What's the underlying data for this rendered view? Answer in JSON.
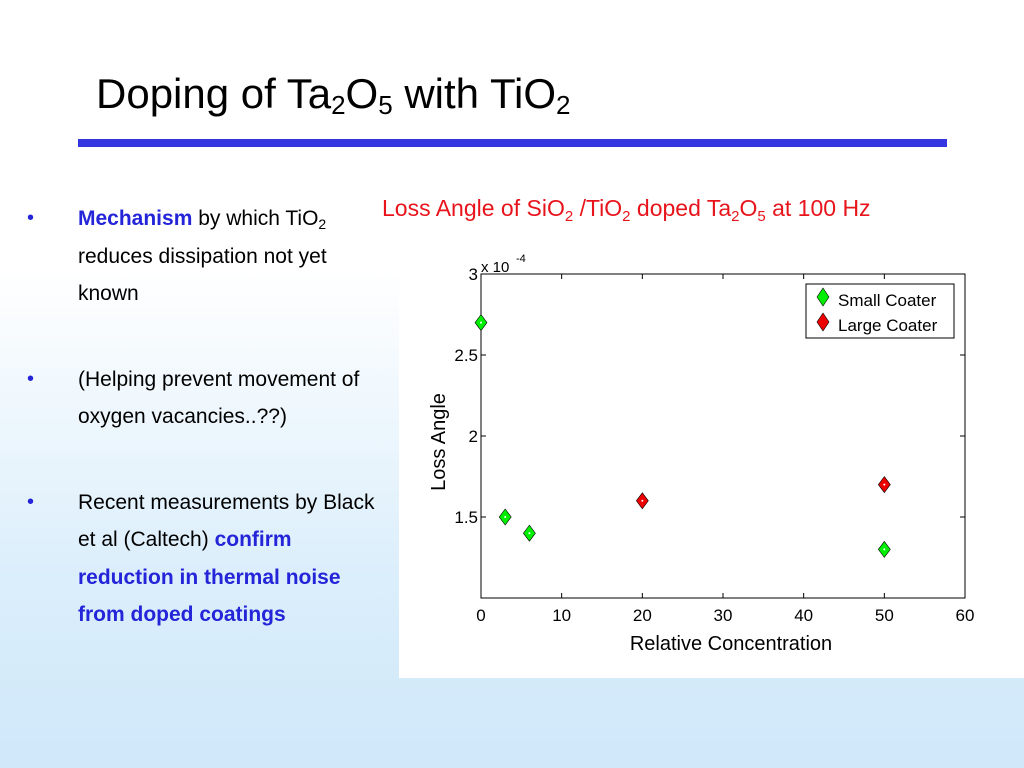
{
  "slide": {
    "title": {
      "part1": "Doping of Ta",
      "sub1": "2",
      "part2": "O",
      "sub2": "5",
      "part3": " with TiO",
      "sub3": "2"
    },
    "bullets": [
      {
        "marker": "•",
        "lead": "Mechanism",
        "text1": " by which TiO",
        "sub": "2",
        "text2": " reduces dissipation not yet known"
      },
      {
        "marker": "•",
        "text": "(Helping prevent movement of oxygen vacancies..??)"
      },
      {
        "marker": "•",
        "text": "Recent measurements by Black et al (Caltech) ",
        "emphasis": "confirm reduction in thermal noise from doped coatings"
      }
    ]
  },
  "chart_title": {
    "t1": "Loss Angle of SiO",
    "s1": "2",
    "t2": " /TiO",
    "s2": "2",
    "t3": " doped Ta",
    "s3": "2",
    "t4": "O",
    "s4": "5",
    "t5": " at 100 Hz"
  },
  "chart_data": {
    "type": "scatter",
    "xlabel": "Relative Concentration",
    "ylabel": "Loss Angle",
    "y_multiplier_base": "x 10",
    "y_multiplier_exp": "-4",
    "xlim": [
      0,
      60
    ],
    "ylim": [
      1,
      3
    ],
    "xticks": [
      0,
      10,
      20,
      30,
      40,
      50,
      60
    ],
    "yticks": [
      {
        "value": 1.5,
        "label": "1.5"
      },
      {
        "value": 2,
        "label": "2"
      },
      {
        "value": 2.5,
        "label": "2.5"
      },
      {
        "value": 3,
        "label": "3"
      }
    ],
    "legend_position": "top-right",
    "grid": false,
    "series": [
      {
        "name": "Small Coater",
        "color": "#00ee00",
        "marker": "diamond",
        "points": [
          [
            0,
            2.7
          ],
          [
            3,
            1.5
          ],
          [
            6,
            1.4
          ],
          [
            50,
            1.3
          ]
        ]
      },
      {
        "name": "Large Coater",
        "color": "#ee0000",
        "marker": "diamond",
        "points": [
          [
            20,
            1.6
          ],
          [
            50,
            1.7
          ]
        ]
      }
    ]
  }
}
